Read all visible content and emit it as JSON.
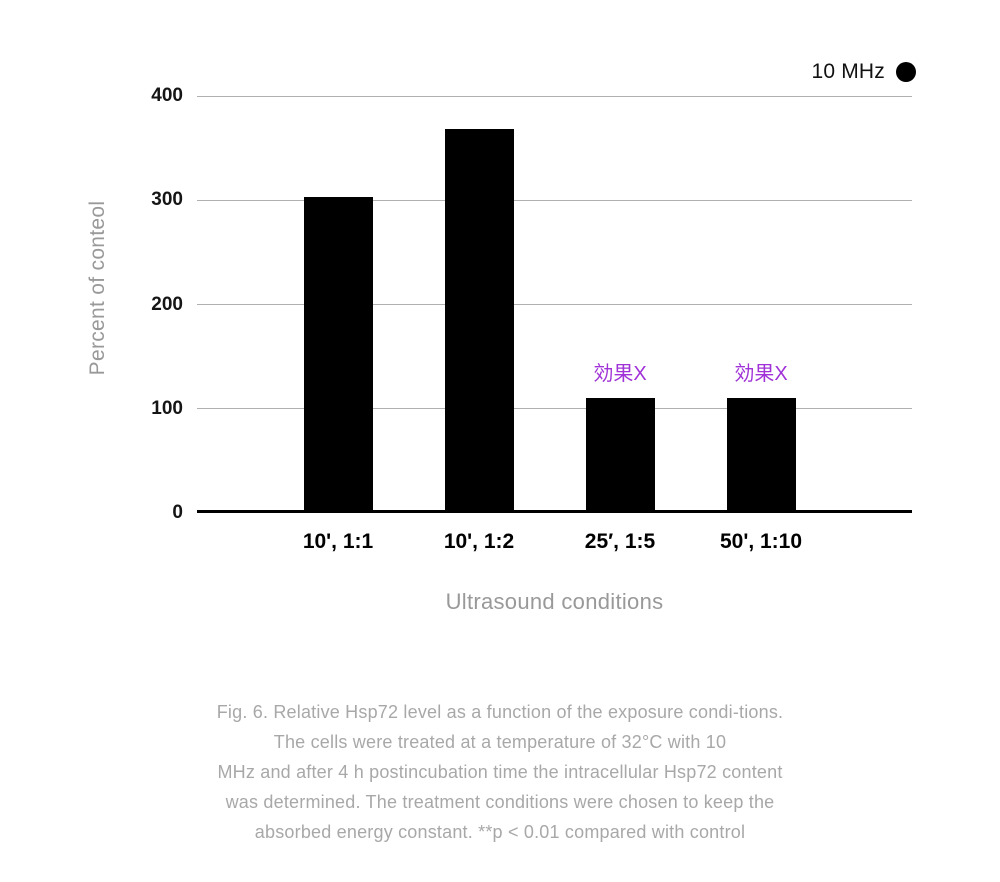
{
  "chart_data": {
    "type": "bar",
    "title": "",
    "categories": [
      "10', 1:1",
      "10', 1:2",
      "25′, 1:5",
      "50', 1:10"
    ],
    "values": [
      300,
      365,
      107,
      107
    ],
    "series": [
      {
        "name": "10 MHz",
        "values": [
          300,
          365,
          107,
          107
        ]
      }
    ],
    "annotations": [
      "",
      "",
      "効果X",
      "効果X"
    ],
    "xlabel": "Ultrasound conditions",
    "ylabel": "Percent of conteol",
    "ylim": [
      0,
      400
    ],
    "yticks": [
      0,
      100,
      200,
      300,
      400
    ],
    "grid": "horizontal",
    "legend_position": "top-right",
    "colors": {
      "bar": "#000000",
      "annotation": "#a032d7",
      "gridline": "#b0b0b0",
      "axis_line": "#000000",
      "tick_label": "#151515",
      "axis_title": "#999999",
      "caption": "#a8a8a8"
    }
  },
  "legend": {
    "label": "10 MHz",
    "marker": "filled-circle"
  },
  "caption": {
    "lines": [
      "Fig. 6. Relative Hsp72 level as a function of the exposure condi-tions.",
      "The cells were treated at a temperature of 32°C with 10",
      "MHz and after 4 h postincubation time the intracellular Hsp72 content",
      "was determined. The treatment conditions were chosen to keep the",
      "absorbed energy constant. **p < 0.01 compared with control"
    ]
  }
}
